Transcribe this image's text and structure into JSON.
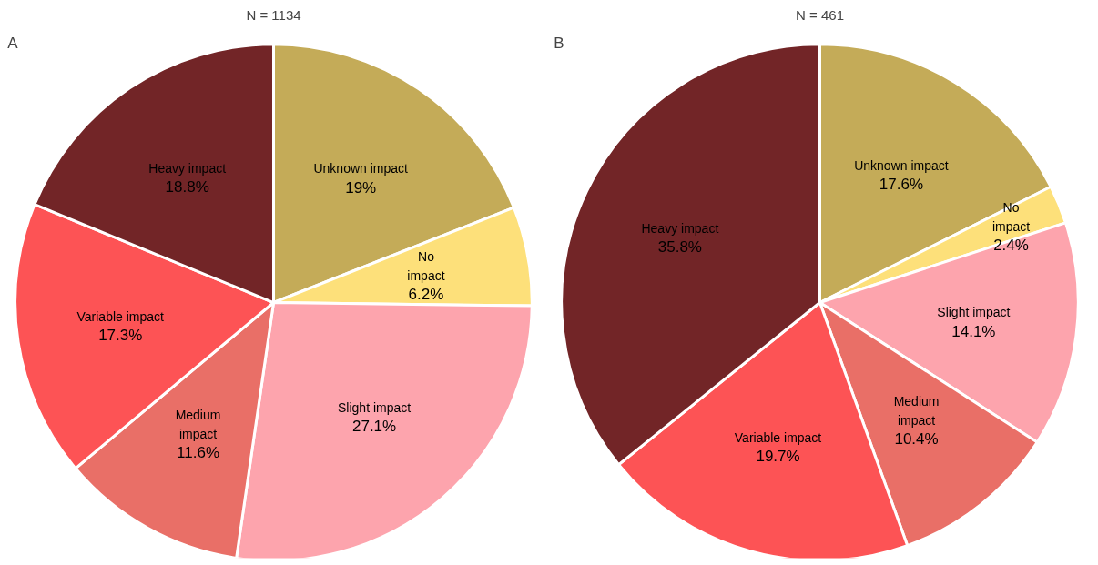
{
  "chart_data": [
    {
      "type": "pie",
      "title": "N = 1134",
      "annotations": [
        "A"
      ],
      "categories": [
        "Unknown impact",
        "No impact",
        "Slight impact",
        "Medium impact",
        "Variable impact",
        "Heavy impact"
      ],
      "values": [
        19,
        6.2,
        27.1,
        11.6,
        17.3,
        18.8
      ],
      "value_labels": [
        "19%",
        "6.2%",
        "27.1%",
        "11.6%",
        "17.3%",
        "18.8%"
      ],
      "colors": [
        "#c4ab58",
        "#fde07a",
        "#fda4ad",
        "#e96f67",
        "#fd5355",
        "#722527"
      ]
    },
    {
      "type": "pie",
      "title": "N = 461",
      "annotations": [
        "B"
      ],
      "categories": [
        "Unknown impact",
        "No impact",
        "Slight impact",
        "Medium impact",
        "Variable impact",
        "Heavy impact"
      ],
      "values": [
        17.6,
        2.4,
        14.1,
        10.4,
        19.7,
        35.8
      ],
      "value_labels": [
        "17.6%",
        "2.4%",
        "14.1%",
        "10.4%",
        "19.7%",
        "35.8%"
      ],
      "colors": [
        "#c4ab58",
        "#fde07a",
        "#fda4ad",
        "#e96f67",
        "#fd5355",
        "#722527"
      ]
    }
  ]
}
